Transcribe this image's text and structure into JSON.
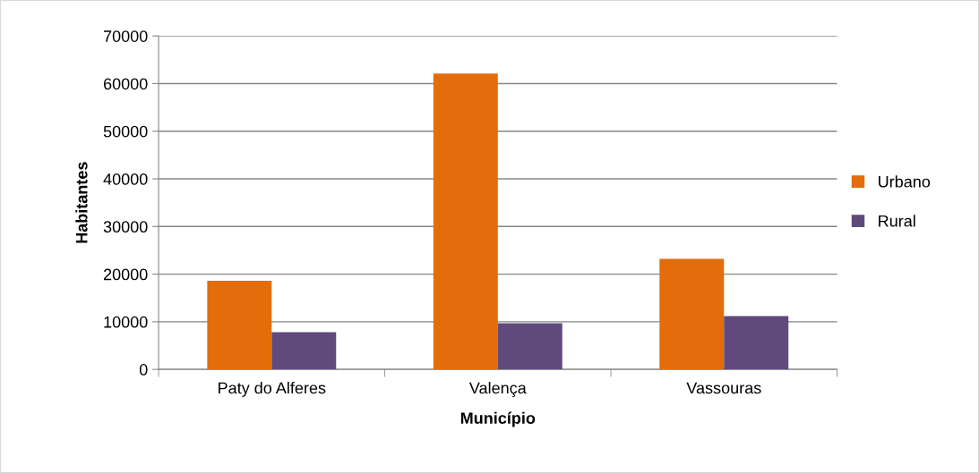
{
  "chart_data": {
    "type": "bar",
    "xlabel": "Município",
    "ylabel": "Habitantes",
    "categories": [
      "Paty do Alferes",
      "Valença",
      "Vassouras"
    ],
    "series": [
      {
        "name": "Urbano",
        "color": "#e46c0a",
        "values": [
          18600,
          62100,
          23200
        ]
      },
      {
        "name": "Rural",
        "color": "#604a7b",
        "values": [
          7800,
          9700,
          11200
        ]
      }
    ],
    "ylim": [
      0,
      70000
    ],
    "yticks": [
      0,
      10000,
      20000,
      30000,
      40000,
      50000,
      60000,
      70000
    ],
    "grid": "y",
    "legend": "right"
  }
}
